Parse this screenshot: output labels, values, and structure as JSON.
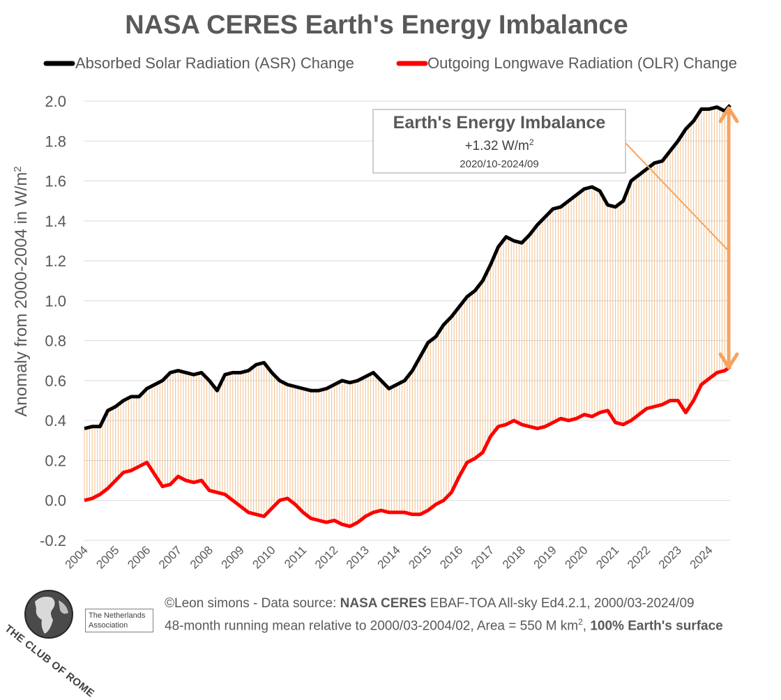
{
  "chart_data": {
    "type": "line",
    "title": "NASA CERES Earth's Energy Imbalance",
    "ylabel": "Anomaly from 2000-2004 in W/m",
    "ylabel_sup": "2",
    "xlabel": "",
    "ylim": [
      -0.2,
      2.0
    ],
    "y_ticks": [
      "-0.2",
      "0.0",
      "0.2",
      "0.4",
      "0.6",
      "0.8",
      "1.0",
      "1.2",
      "1.4",
      "1.6",
      "1.8",
      "2.0"
    ],
    "y_tick_values": [
      -0.2,
      0.0,
      0.2,
      0.4,
      0.6,
      0.8,
      1.0,
      1.2,
      1.4,
      1.6,
      1.8,
      2.0
    ],
    "x_ticks": [
      "2004",
      "2005",
      "2006",
      "2007",
      "2008",
      "2009",
      "2010",
      "2011",
      "2012",
      "2013",
      "2014",
      "2015",
      "2016",
      "2017",
      "2018",
      "2019",
      "2020",
      "2021",
      "2022",
      "2023",
      "2024"
    ],
    "x_tick_values": [
      2004,
      2005,
      2006,
      2007,
      2008,
      2009,
      2010,
      2011,
      2012,
      2013,
      2014,
      2015,
      2016,
      2017,
      2018,
      2019,
      2020,
      2021,
      2022,
      2023,
      2024
    ],
    "xlim": [
      2004.0,
      2024.67
    ],
    "grid": true,
    "legend_position": "top",
    "series": [
      {
        "name": "Absorbed Solar Radiation (ASR) Change",
        "color": "#000000",
        "x": [
          2004.0,
          2004.25,
          2004.5,
          2004.75,
          2005.0,
          2005.25,
          2005.5,
          2005.75,
          2006.0,
          2006.25,
          2006.5,
          2006.75,
          2007.0,
          2007.25,
          2007.5,
          2007.75,
          2008.0,
          2008.25,
          2008.5,
          2008.75,
          2009.0,
          2009.25,
          2009.5,
          2009.75,
          2010.0,
          2010.25,
          2010.5,
          2010.75,
          2011.0,
          2011.25,
          2011.5,
          2011.75,
          2012.0,
          2012.25,
          2012.5,
          2012.75,
          2013.0,
          2013.25,
          2013.5,
          2013.75,
          2014.0,
          2014.25,
          2014.5,
          2014.75,
          2015.0,
          2015.25,
          2015.5,
          2015.75,
          2016.0,
          2016.25,
          2016.5,
          2016.75,
          2017.0,
          2017.25,
          2017.5,
          2017.75,
          2018.0,
          2018.25,
          2018.5,
          2018.75,
          2019.0,
          2019.25,
          2019.5,
          2019.75,
          2020.0,
          2020.25,
          2020.5,
          2020.75,
          2021.0,
          2021.25,
          2021.5,
          2021.75,
          2022.0,
          2022.25,
          2022.5,
          2022.75,
          2023.0,
          2023.25,
          2023.5,
          2023.75,
          2024.0,
          2024.25,
          2024.5,
          2024.67
        ],
        "values": [
          0.36,
          0.37,
          0.37,
          0.45,
          0.47,
          0.5,
          0.52,
          0.52,
          0.56,
          0.58,
          0.6,
          0.64,
          0.65,
          0.64,
          0.63,
          0.64,
          0.6,
          0.55,
          0.63,
          0.64,
          0.64,
          0.65,
          0.68,
          0.69,
          0.64,
          0.6,
          0.58,
          0.57,
          0.56,
          0.55,
          0.55,
          0.56,
          0.58,
          0.6,
          0.59,
          0.6,
          0.62,
          0.64,
          0.6,
          0.56,
          0.58,
          0.6,
          0.65,
          0.72,
          0.79,
          0.82,
          0.88,
          0.92,
          0.97,
          1.02,
          1.05,
          1.1,
          1.18,
          1.27,
          1.32,
          1.3,
          1.29,
          1.33,
          1.38,
          1.42,
          1.46,
          1.47,
          1.5,
          1.53,
          1.56,
          1.57,
          1.55,
          1.48,
          1.47,
          1.5,
          1.6,
          1.63,
          1.66,
          1.69,
          1.7,
          1.75,
          1.8,
          1.86,
          1.9,
          1.96,
          1.96,
          1.97,
          1.95,
          1.98
        ]
      },
      {
        "name": "Outgoing Longwave Radiation (OLR) Change",
        "color": "#ff0000",
        "x": [
          2004.0,
          2004.25,
          2004.5,
          2004.75,
          2005.0,
          2005.25,
          2005.5,
          2005.75,
          2006.0,
          2006.25,
          2006.5,
          2006.75,
          2007.0,
          2007.25,
          2007.5,
          2007.75,
          2008.0,
          2008.25,
          2008.5,
          2008.75,
          2009.0,
          2009.25,
          2009.5,
          2009.75,
          2010.0,
          2010.25,
          2010.5,
          2010.75,
          2011.0,
          2011.25,
          2011.5,
          2011.75,
          2012.0,
          2012.25,
          2012.5,
          2012.75,
          2013.0,
          2013.25,
          2013.5,
          2013.75,
          2014.0,
          2014.25,
          2014.5,
          2014.75,
          2015.0,
          2015.25,
          2015.5,
          2015.75,
          2016.0,
          2016.25,
          2016.5,
          2016.75,
          2017.0,
          2017.25,
          2017.5,
          2017.75,
          2018.0,
          2018.25,
          2018.5,
          2018.75,
          2019.0,
          2019.25,
          2019.5,
          2019.75,
          2020.0,
          2020.25,
          2020.5,
          2020.75,
          2021.0,
          2021.25,
          2021.5,
          2021.75,
          2022.0,
          2022.25,
          2022.5,
          2022.75,
          2023.0,
          2023.25,
          2023.5,
          2023.75,
          2024.0,
          2024.25,
          2024.5,
          2024.67
        ],
        "values": [
          0.0,
          0.01,
          0.03,
          0.06,
          0.1,
          0.14,
          0.15,
          0.17,
          0.19,
          0.13,
          0.07,
          0.08,
          0.12,
          0.1,
          0.09,
          0.1,
          0.05,
          0.04,
          0.03,
          0.0,
          -0.03,
          -0.06,
          -0.07,
          -0.08,
          -0.04,
          0.0,
          0.01,
          -0.02,
          -0.06,
          -0.09,
          -0.1,
          -0.11,
          -0.1,
          -0.12,
          -0.13,
          -0.11,
          -0.08,
          -0.06,
          -0.05,
          -0.06,
          -0.06,
          -0.06,
          -0.07,
          -0.07,
          -0.05,
          -0.02,
          0.0,
          0.04,
          0.12,
          0.19,
          0.21,
          0.24,
          0.32,
          0.37,
          0.38,
          0.4,
          0.38,
          0.37,
          0.36,
          0.37,
          0.39,
          0.41,
          0.4,
          0.41,
          0.43,
          0.42,
          0.44,
          0.45,
          0.39,
          0.38,
          0.4,
          0.43,
          0.46,
          0.47,
          0.48,
          0.5,
          0.5,
          0.44,
          0.5,
          0.58,
          0.61,
          0.64,
          0.65,
          0.67
        ]
      }
    ],
    "annotation": {
      "title": "Earth's Energy Imbalance",
      "value": "+1.32 W/m",
      "value_sup": "2",
      "period": "2020/10-2024/09",
      "arrow_color": "#f4a460"
    },
    "fill_color": "#e8a35a"
  },
  "footer": {
    "credit_prefix": "©Leon simons - Data source: ",
    "credit_bold": "NASA CERES",
    "credit_suffix": " EBAF-TOA All-sky Ed4.2.1, 2000/03-2024/09",
    "line2_prefix": "48-month running mean relative to 2000/03-2004/02, Area = 550 M km",
    "line2_sup": "2",
    "line2_sep": ", ",
    "line2_bold": "100% Earth's surface",
    "assoc_line1": "The Netherlands",
    "assoc_line2": "Association",
    "club": "THE CLUB OF ROME"
  }
}
